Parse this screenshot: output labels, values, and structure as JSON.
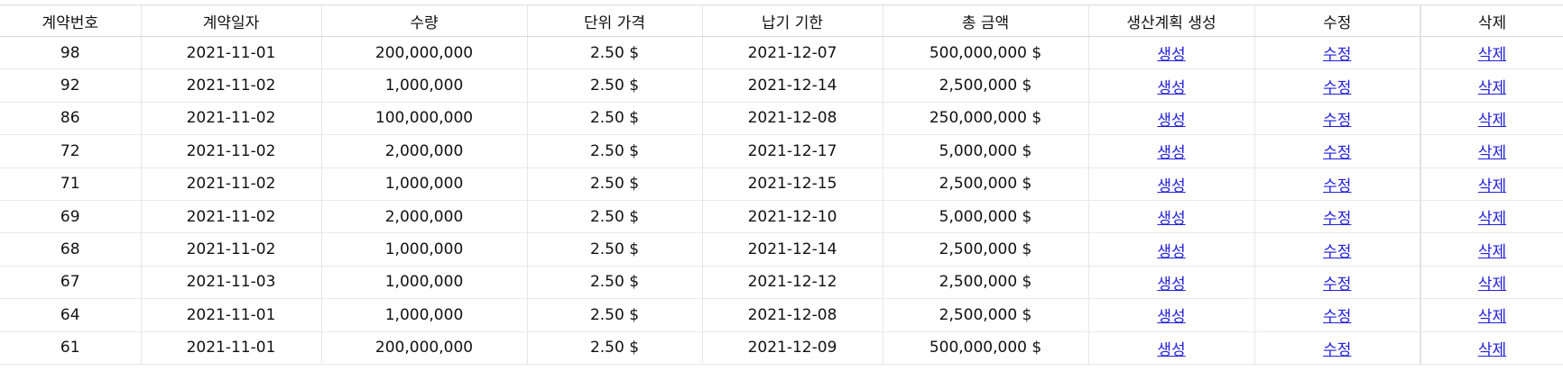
{
  "table": {
    "headers": [
      "계약번호",
      "계약일자",
      "수량",
      "단위 가격",
      "납기 기한",
      "총 금액",
      "생산계획 생성",
      "수정",
      "삭제"
    ],
    "link_labels": {
      "create": "생성",
      "edit": "수정",
      "delete": "삭제"
    },
    "rows": [
      {
        "id": "98",
        "date": "2021-11-01",
        "qty": "200,000,000",
        "price": "2.50 $",
        "due": "2021-12-07",
        "total": "500,000,000 $"
      },
      {
        "id": "92",
        "date": "2021-11-02",
        "qty": "1,000,000",
        "price": "2.50 $",
        "due": "2021-12-14",
        "total": "2,500,000 $"
      },
      {
        "id": "86",
        "date": "2021-11-02",
        "qty": "100,000,000",
        "price": "2.50 $",
        "due": "2021-12-08",
        "total": "250,000,000 $"
      },
      {
        "id": "72",
        "date": "2021-11-02",
        "qty": "2,000,000",
        "price": "2.50 $",
        "due": "2021-12-17",
        "total": "5,000,000 $"
      },
      {
        "id": "71",
        "date": "2021-11-02",
        "qty": "1,000,000",
        "price": "2.50 $",
        "due": "2021-12-15",
        "total": "2,500,000 $"
      },
      {
        "id": "69",
        "date": "2021-11-02",
        "qty": "2,000,000",
        "price": "2.50 $",
        "due": "2021-12-10",
        "total": "5,000,000 $"
      },
      {
        "id": "68",
        "date": "2021-11-02",
        "qty": "1,000,000",
        "price": "2.50 $",
        "due": "2021-12-14",
        "total": "2,500,000 $"
      },
      {
        "id": "67",
        "date": "2021-11-03",
        "qty": "1,000,000",
        "price": "2.50 $",
        "due": "2021-12-12",
        "total": "2,500,000 $"
      },
      {
        "id": "64",
        "date": "2021-11-01",
        "qty": "1,000,000",
        "price": "2.50 $",
        "due": "2021-12-08",
        "total": "2,500,000 $"
      },
      {
        "id": "61",
        "date": "2021-11-01",
        "qty": "200,000,000",
        "price": "2.50 $",
        "due": "2021-12-09",
        "total": "500,000,000 $"
      }
    ]
  },
  "colors": {
    "link": "#2020e0",
    "text": "#111111",
    "border": "#e6e6e6"
  }
}
